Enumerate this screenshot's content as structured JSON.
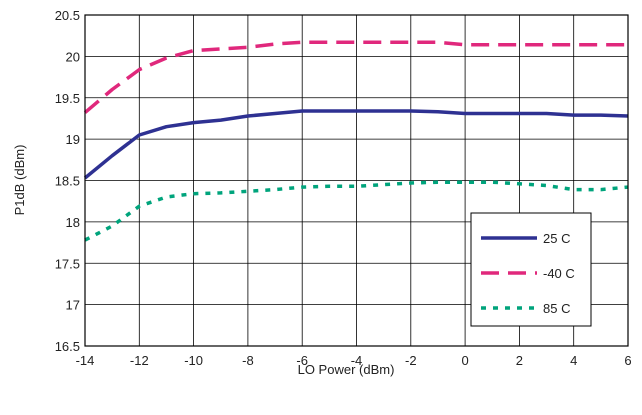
{
  "chart_data": {
    "type": "line",
    "title": "",
    "xlabel": "LO Power (dBm)",
    "ylabel": "P1dB (dBm)",
    "xlim": [
      -14,
      6
    ],
    "ylim": [
      16.5,
      20.5
    ],
    "x_ticks": [
      -14,
      -12,
      -10,
      -8,
      -6,
      -4,
      -2,
      0,
      2,
      4,
      6
    ],
    "y_ticks": [
      16.5,
      17,
      17.5,
      18,
      18.5,
      19,
      19.5,
      20,
      20.5
    ],
    "x_tick_labels": [
      "-14",
      "-12",
      "-10",
      "-8",
      "-6",
      "-4",
      "-2",
      "0",
      "2",
      "4",
      "6"
    ],
    "y_tick_labels": [
      "16.5",
      "17",
      "17.5",
      "18",
      "18.5",
      "19",
      "19.5",
      "20",
      "20.5"
    ],
    "grid": true,
    "legend_position": "bottom-right",
    "series": [
      {
        "name": "25 C",
        "color": "#2e3192",
        "style": "solid",
        "x": [
          -14,
          -13,
          -12,
          -11,
          -10,
          -9,
          -8,
          -7,
          -6,
          -5,
          -4,
          -3,
          -2,
          -1,
          0,
          1,
          2,
          3,
          4,
          5,
          6
        ],
        "y": [
          18.53,
          18.8,
          19.05,
          19.15,
          19.2,
          19.23,
          19.28,
          19.31,
          19.34,
          19.34,
          19.34,
          19.34,
          19.34,
          19.33,
          19.31,
          19.31,
          19.31,
          19.31,
          19.29,
          19.29,
          19.28
        ]
      },
      {
        "name": "-40 C",
        "color": "#e0287c",
        "style": "dashed",
        "x": [
          -14,
          -13,
          -12,
          -11,
          -10,
          -9,
          -8,
          -7,
          -6,
          -5,
          -4,
          -3,
          -2,
          -1,
          0,
          1,
          2,
          3,
          4,
          5,
          6
        ],
        "y": [
          19.32,
          19.6,
          19.84,
          19.98,
          20.07,
          20.09,
          20.11,
          20.15,
          20.17,
          20.17,
          20.17,
          20.17,
          20.17,
          20.17,
          20.14,
          20.14,
          20.14,
          20.14,
          20.14,
          20.14,
          20.14
        ]
      },
      {
        "name": "85 C",
        "color": "#00a47c",
        "style": "dotted",
        "x": [
          -14,
          -13,
          -12,
          -11,
          -10,
          -9,
          -8,
          -7,
          -6,
          -5,
          -4,
          -3,
          -2,
          -1,
          0,
          1,
          2,
          3,
          4,
          5,
          6
        ],
        "y": [
          17.78,
          17.95,
          18.19,
          18.3,
          18.34,
          18.35,
          18.37,
          18.39,
          18.42,
          18.43,
          18.43,
          18.45,
          18.47,
          18.48,
          18.48,
          18.48,
          18.46,
          18.44,
          18.39,
          18.39,
          18.42
        ]
      }
    ]
  }
}
